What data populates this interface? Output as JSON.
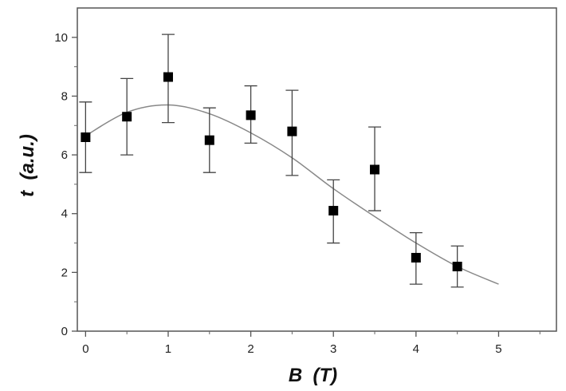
{
  "chart_data": {
    "type": "scatter",
    "title": "",
    "xlabel": "B  (T)",
    "ylabel": "t  (a.u.)",
    "xlim": [
      -0.1,
      5.7
    ],
    "ylim": [
      0,
      11
    ],
    "x_ticks": [
      0,
      1,
      2,
      3,
      4,
      5
    ],
    "y_ticks": [
      0,
      2,
      4,
      6,
      8,
      10
    ],
    "grid": false,
    "legend": "none",
    "series": [
      {
        "type": "scatter",
        "marker": "square",
        "color": "#000000",
        "x": [
          0,
          0.5,
          1,
          1.5,
          2,
          2.5,
          3,
          3.5,
          4,
          4.5
        ],
        "y": [
          6.6,
          7.3,
          8.65,
          6.5,
          7.35,
          6.8,
          4.1,
          5.5,
          2.5,
          2.2
        ],
        "y_err_low": [
          5.4,
          6.0,
          7.1,
          5.4,
          6.4,
          5.3,
          3.0,
          4.1,
          1.6,
          1.5
        ],
        "y_err_high": [
          7.8,
          8.6,
          10.1,
          7.6,
          8.35,
          8.2,
          5.15,
          6.95,
          3.35,
          2.9
        ]
      },
      {
        "type": "line",
        "color": "#888888",
        "x": [
          0,
          0.5,
          1,
          1.5,
          2,
          2.5,
          3,
          3.5,
          4,
          4.5,
          5
        ],
        "y": [
          6.65,
          7.45,
          7.7,
          7.4,
          6.75,
          5.9,
          4.85,
          3.9,
          3.0,
          2.2,
          1.6
        ]
      }
    ]
  }
}
